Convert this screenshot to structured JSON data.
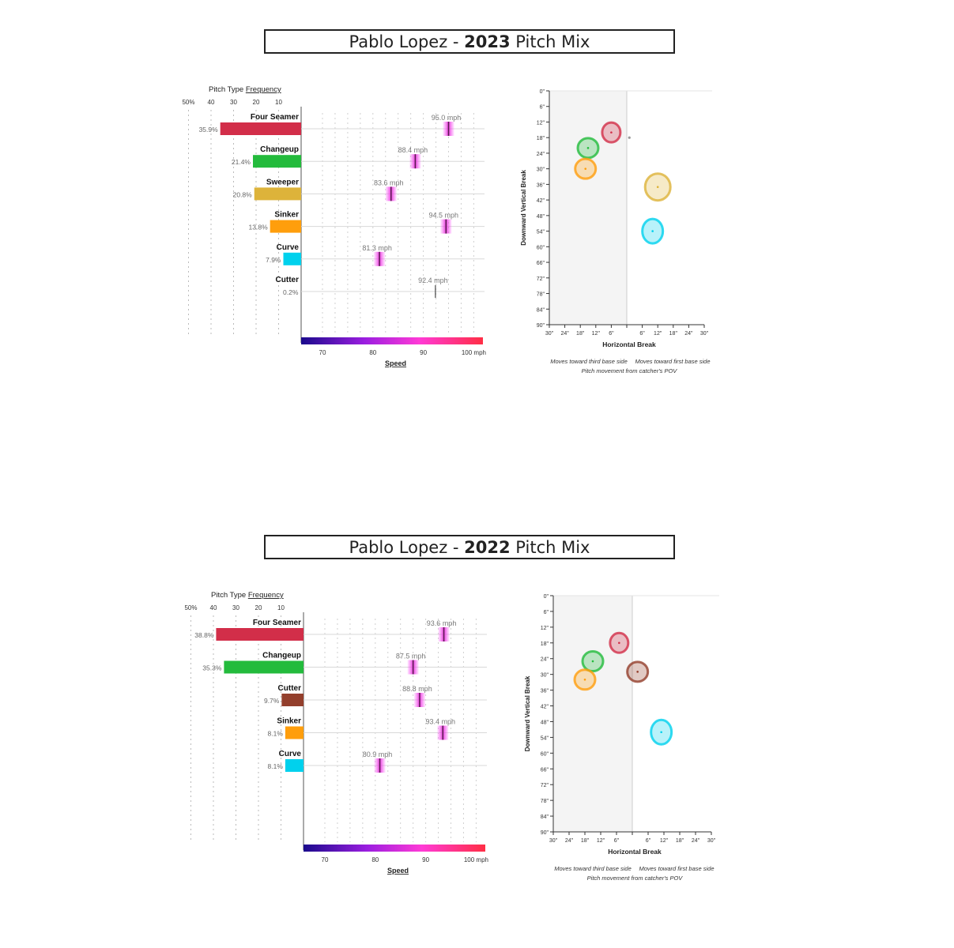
{
  "colors": {
    "Four Seamer": "#d22e49",
    "Changeup": "#23bb3c",
    "Sweeper": "#ddb33a",
    "Sinker": "#ff9e0c",
    "Curve": "#00d1ed",
    "Cutter": "#933f2c"
  },
  "labels": {
    "freq_title_prefix": "Pitch Type ",
    "freq_title_link": "Frequency",
    "freq_ticks": [
      "50%",
      "40",
      "30",
      "20",
      "10"
    ],
    "speed_ticks": [
      "70",
      "80",
      "90",
      "100 mph"
    ],
    "speed_title": "Speed",
    "vbreak_title": "Downward Vertical Break",
    "hbreak_title": "Horizontal Break",
    "note_left": "Moves toward third base side",
    "note_right": "Moves toward first base side",
    "note_bottom": "Pitch movement from catcher's POV",
    "y_ticks": [
      "0\"",
      "6\"",
      "12\"",
      "18\"",
      "24\"",
      "30\"",
      "36\"",
      "42\"",
      "48\"",
      "54\"",
      "60\"",
      "66\"",
      "72\"",
      "78\"",
      "84\"",
      "90\""
    ],
    "x_ticks": [
      "30\"",
      "24\"",
      "18\"",
      "12\"",
      "6\"",
      "",
      "6\"",
      "12\"",
      "18\"",
      "24\"",
      "30\""
    ]
  },
  "chart_data": [
    {
      "type": "bar",
      "title_prefix": "Pablo Lopez - ",
      "title_year": "2023",
      "title_suffix": " Pitch Mix",
      "pitches": [
        {
          "name": "Four Seamer",
          "freq_label": "35.9%",
          "freq": 35.9,
          "speed_label": "95.0 mph",
          "speed": 95.0,
          "hb": -6,
          "vb": 16
        },
        {
          "name": "Changeup",
          "freq_label": "21.4%",
          "freq": 21.4,
          "speed_label": "88.4 mph",
          "speed": 88.4,
          "hb": -15,
          "vb": 22
        },
        {
          "name": "Sweeper",
          "freq_label": "20.8%",
          "freq": 20.8,
          "speed_label": "83.6 mph",
          "speed": 83.6,
          "hb": 12,
          "vb": 37
        },
        {
          "name": "Sinker",
          "freq_label": "13.8%",
          "freq": 13.8,
          "speed_label": "94.5 mph",
          "speed": 94.5,
          "hb": -16,
          "vb": 30
        },
        {
          "name": "Curve",
          "freq_label": "7.9%",
          "freq": 7.9,
          "speed_label": "81.3 mph",
          "speed": 81.3,
          "hb": 10,
          "vb": 54
        },
        {
          "name": "Cutter",
          "freq_label": "0.2%",
          "freq": 0.2,
          "speed_label": "92.4 mph",
          "speed": 92.4,
          "hb": 1,
          "vb": 18
        }
      ]
    },
    {
      "type": "bar",
      "title_prefix": "Pablo Lopez - ",
      "title_year": "2022",
      "title_suffix": " Pitch Mix",
      "pitches": [
        {
          "name": "Four Seamer",
          "freq_label": "38.8%",
          "freq": 38.8,
          "speed_label": "93.6 mph",
          "speed": 93.6,
          "hb": -5,
          "vb": 18
        },
        {
          "name": "Changeup",
          "freq_label": "35.3%",
          "freq": 35.3,
          "speed_label": "87.5 mph",
          "speed": 87.5,
          "hb": -15,
          "vb": 25
        },
        {
          "name": "Cutter",
          "freq_label": "9.7%",
          "freq": 9.7,
          "speed_label": "88.8 mph",
          "speed": 88.8,
          "hb": 2,
          "vb": 29
        },
        {
          "name": "Sinker",
          "freq_label": "8.1%",
          "freq": 8.1,
          "speed_label": "93.4 mph",
          "speed": 93.4,
          "hb": -18,
          "vb": 32
        },
        {
          "name": "Curve",
          "freq_label": "8.1%",
          "freq": 8.1,
          "speed_label": "80.9 mph",
          "speed": 80.9,
          "hb": 11,
          "vb": 52
        }
      ]
    }
  ]
}
